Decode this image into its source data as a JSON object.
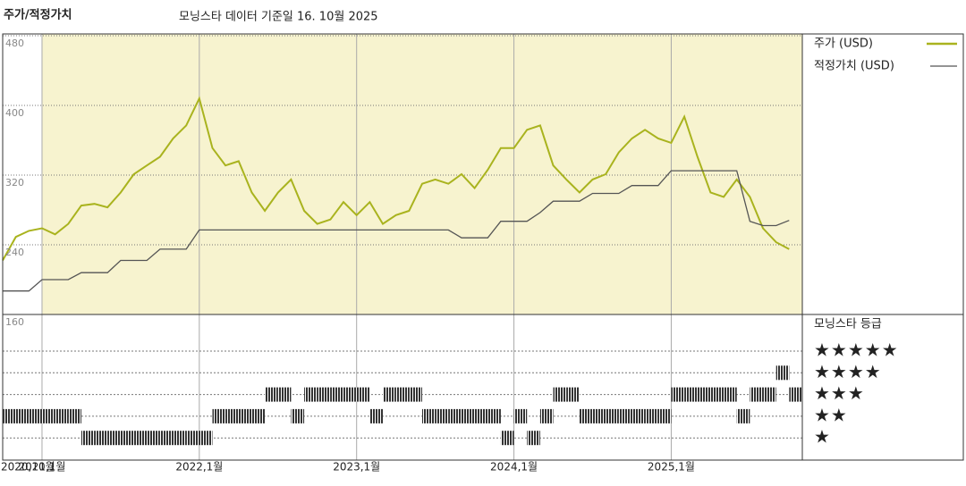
{
  "chart_data": [
    {
      "type": "line",
      "title": "주가/적정가치",
      "subtitle": "모닝스타 데이터 기준일 16. 10월 2025",
      "x": [
        "2020-10",
        "2020-11",
        "2020-12",
        "2021-01",
        "2021-02",
        "2021-03",
        "2021-04",
        "2021-05",
        "2021-06",
        "2021-07",
        "2021-08",
        "2021-09",
        "2021-10",
        "2021-11",
        "2021-12",
        "2022-01",
        "2022-02",
        "2022-03",
        "2022-04",
        "2022-05",
        "2022-06",
        "2022-07",
        "2022-08",
        "2022-09",
        "2022-10",
        "2022-11",
        "2022-12",
        "2023-01",
        "2023-02",
        "2023-03",
        "2023-04",
        "2023-05",
        "2023-06",
        "2023-07",
        "2023-08",
        "2023-09",
        "2023-10",
        "2023-11",
        "2023-12",
        "2024-01",
        "2024-02",
        "2024-03",
        "2024-04",
        "2024-05",
        "2024-06",
        "2024-07",
        "2024-08",
        "2024-09",
        "2024-10",
        "2024-11",
        "2024-12",
        "2025-01",
        "2025-02",
        "2025-03",
        "2025-04",
        "2025-05",
        "2025-06",
        "2025-07",
        "2025-08",
        "2025-09",
        "2025-10"
      ],
      "series": [
        {
          "name": "주가 (USD)",
          "color": "#a9b31e",
          "values": [
            222,
            249,
            256,
            259,
            252,
            264,
            285,
            287,
            283,
            300,
            321,
            331,
            341,
            362,
            377,
            408,
            351,
            331,
            336,
            300,
            279,
            300,
            315,
            279,
            264,
            269,
            289,
            274,
            289,
            264,
            274,
            279,
            310,
            315,
            310,
            321,
            305,
            326,
            351,
            351,
            372,
            377,
            331,
            315,
            300,
            315,
            321,
            346,
            362,
            372,
            362,
            357,
            387,
            341,
            300,
            295,
            315,
            295,
            259,
            243,
            235
          ]
        },
        {
          "name": "적정가치 (USD)",
          "color": "#555555",
          "values": [
            187,
            187,
            187,
            200,
            200,
            200,
            208,
            208,
            208,
            222,
            222,
            222,
            235,
            235,
            235,
            257,
            257,
            257,
            257,
            257,
            257,
            257,
            257,
            257,
            257,
            257,
            257,
            257,
            257,
            257,
            257,
            257,
            257,
            257,
            257,
            248,
            248,
            248,
            267,
            267,
            267,
            277,
            290,
            290,
            290,
            299,
            299,
            299,
            308,
            308,
            308,
            325,
            325,
            325,
            325,
            325,
            325,
            267,
            262,
            262,
            268
          ]
        }
      ],
      "xlim": [
        "2020-10",
        "2025-11"
      ],
      "xticks": [
        {
          "value": "2020-10",
          "label": "2020,10월"
        },
        {
          "value": "2021-01",
          "label": "2021,1월"
        },
        {
          "value": "2022-01",
          "label": "2022,1월"
        },
        {
          "value": "2023-01",
          "label": "2023,1월"
        },
        {
          "value": "2024-01",
          "label": "2024,1월"
        },
        {
          "value": "2025-01",
          "label": "2025,1월"
        }
      ],
      "ylim": [
        160,
        482
      ],
      "yticks": [
        480,
        400,
        320,
        240,
        160
      ],
      "grid": true
    },
    {
      "type": "rating",
      "title": "모닝스타 등급",
      "x": [
        "2020-10",
        "2020-11",
        "2020-12",
        "2021-01",
        "2021-02",
        "2021-03",
        "2021-04",
        "2021-05",
        "2021-06",
        "2021-07",
        "2021-08",
        "2021-09",
        "2021-10",
        "2021-11",
        "2021-12",
        "2022-01",
        "2022-02",
        "2022-03",
        "2022-04",
        "2022-05",
        "2022-06",
        "2022-07",
        "2022-08",
        "2022-09",
        "2022-10",
        "2022-11",
        "2022-12",
        "2023-01",
        "2023-02",
        "2023-03",
        "2023-04",
        "2023-05",
        "2023-06",
        "2023-07",
        "2023-08",
        "2023-09",
        "2023-10",
        "2023-11",
        "2023-12",
        "2024-01",
        "2024-02",
        "2024-03",
        "2024-04",
        "2024-05",
        "2024-06",
        "2024-07",
        "2024-08",
        "2024-09",
        "2024-10",
        "2024-11",
        "2024-12",
        "2025-01",
        "2025-02",
        "2025-03",
        "2025-04",
        "2025-05",
        "2025-06",
        "2025-07",
        "2025-08",
        "2025-09",
        "2025-10"
      ],
      "values": [
        2,
        2,
        2,
        2,
        2,
        2,
        1,
        1,
        1,
        1,
        1,
        1,
        1,
        1,
        1,
        1,
        2,
        2,
        2,
        2,
        3,
        3,
        2,
        3,
        3,
        3,
        3,
        3,
        2,
        3,
        3,
        3,
        2,
        2,
        2,
        2,
        2,
        2,
        1,
        2,
        1,
        2,
        3,
        3,
        2,
        2,
        2,
        2,
        2,
        2,
        2,
        3,
        3,
        3,
        3,
        3,
        2,
        3,
        3,
        4,
        3
      ],
      "levels": [
        {
          "value": 5,
          "label": "★★★★★"
        },
        {
          "value": 4,
          "label": "★★★★"
        },
        {
          "value": 3,
          "label": "★★★"
        },
        {
          "value": 2,
          "label": "★★"
        },
        {
          "value": 1,
          "label": "★"
        }
      ],
      "color": "#333333"
    }
  ]
}
